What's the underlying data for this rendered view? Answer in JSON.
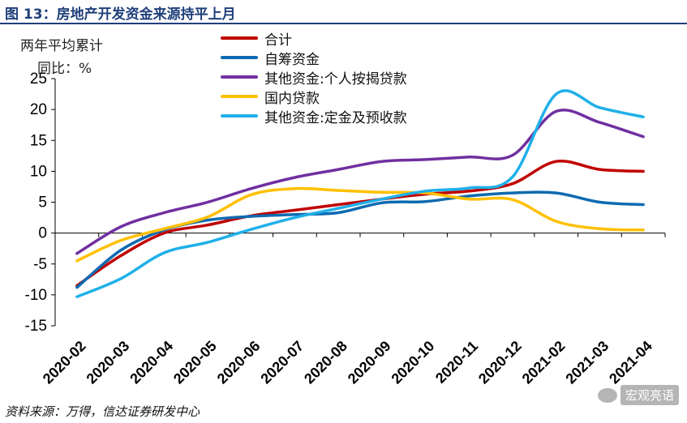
{
  "figure": {
    "title": "图 13：房地产开发资金来源持平上月",
    "unit_line1": "两年平均累计",
    "unit_line2": "同比：%"
  },
  "source": "资料来源：万得，信达证券研发中心",
  "watermark": "宏观亮语",
  "chart_data": {
    "type": "line",
    "title": "",
    "xlabel": "",
    "ylabel": "两年平均累计同比：%",
    "ylim": [
      -15,
      25
    ],
    "yticks": [
      -15,
      -10,
      -5,
      0,
      5,
      10,
      15,
      20,
      25
    ],
    "categories": [
      "2020-02",
      "2020-03",
      "2020-04",
      "2020-05",
      "2020-06",
      "2020-07",
      "2020-08",
      "2020-09",
      "2020-10",
      "2020-11",
      "2020-12",
      "2021-02",
      "2021-03",
      "2021-04"
    ],
    "legend_position": "top-center",
    "series": [
      {
        "name": "合计",
        "color": "#c00000",
        "values": [
          -8.5,
          -3.7,
          0.0,
          1.3,
          2.8,
          3.7,
          4.6,
          5.5,
          6.3,
          6.8,
          8.0,
          11.6,
          10.3,
          10.0
        ]
      },
      {
        "name": "自筹资金",
        "color": "#0e6ab0",
        "values": [
          -8.8,
          -2.8,
          0.5,
          2.1,
          2.7,
          3.0,
          3.3,
          4.9,
          5.1,
          6.0,
          6.5,
          6.5,
          5.0,
          4.6
        ]
      },
      {
        "name": "其他资金:个人按揭贷款",
        "color": "#7030a0",
        "values": [
          -3.3,
          1.0,
          3.3,
          5.0,
          7.2,
          9.0,
          10.3,
          11.6,
          11.9,
          12.3,
          12.6,
          19.7,
          17.9,
          15.6
        ]
      },
      {
        "name": "国内贷款",
        "color": "#ffc000",
        "values": [
          -4.5,
          -1.2,
          0.7,
          2.6,
          6.2,
          7.2,
          6.9,
          6.6,
          6.5,
          5.5,
          5.4,
          1.9,
          0.7,
          0.5
        ]
      },
      {
        "name": "其他资金:定金及预收款",
        "color": "#1fb0e8",
        "values": [
          -10.3,
          -7.4,
          -3.2,
          -1.5,
          0.6,
          2.5,
          4.0,
          5.5,
          6.8,
          7.3,
          9.1,
          22.5,
          20.3,
          18.8
        ]
      }
    ]
  }
}
